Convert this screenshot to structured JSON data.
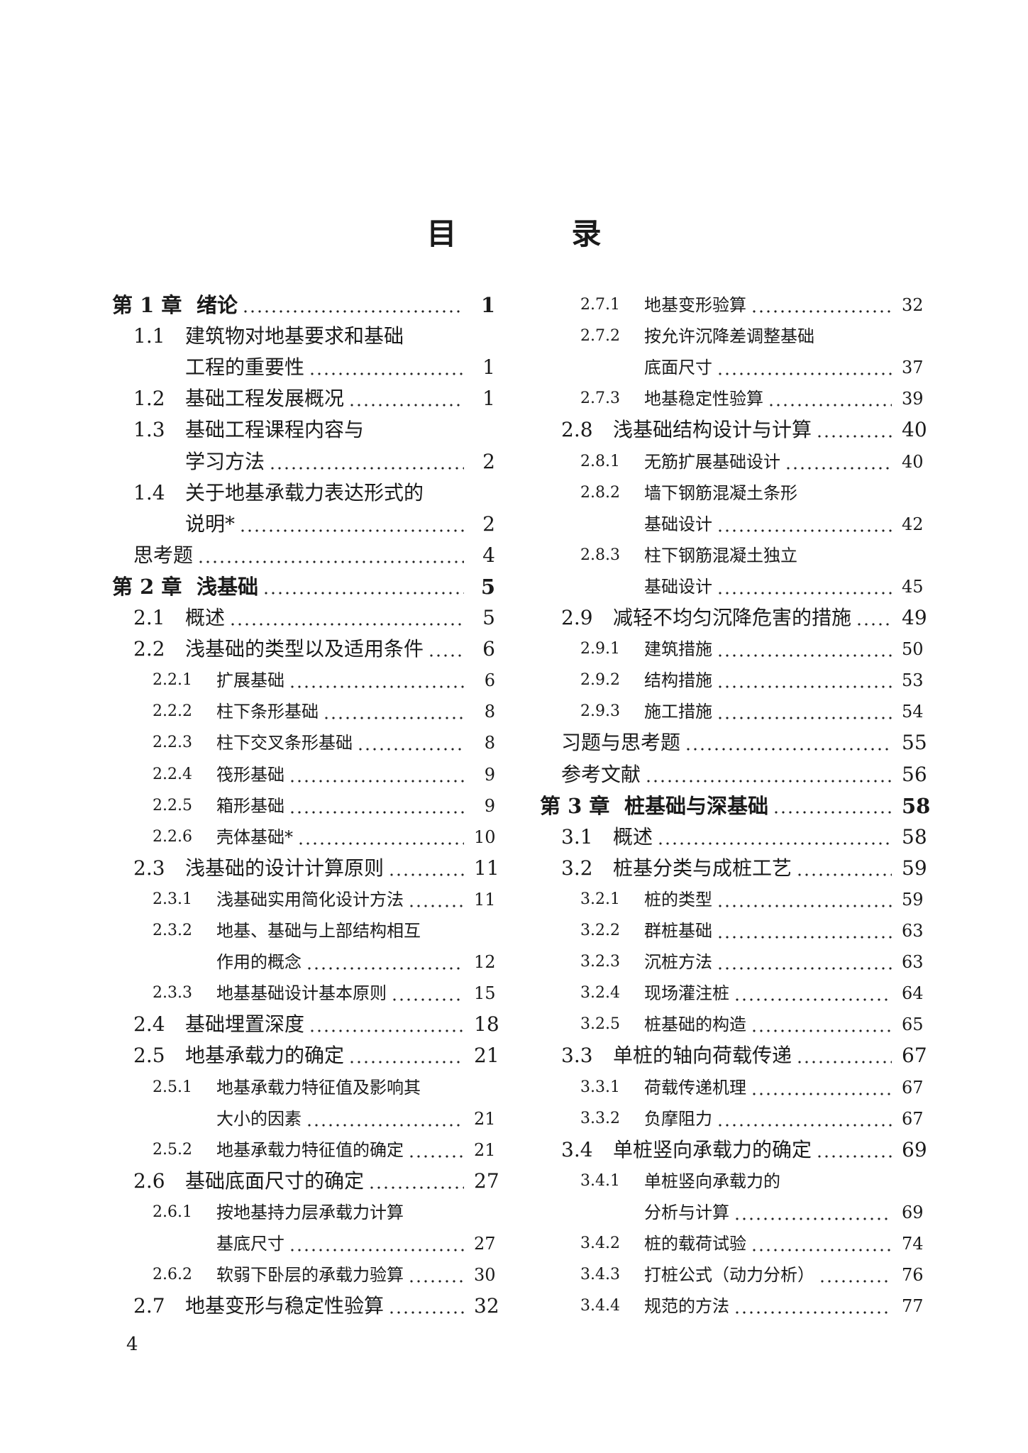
{
  "title": "目　录",
  "page_number": "4",
  "columns": [
    [
      {
        "level": 0,
        "num": "第 1 章",
        "text": "绪论",
        "page": "1"
      },
      {
        "level": 1,
        "num": "1.1",
        "text": "建筑物对地基要求和基础",
        "page": ""
      },
      {
        "level": 1,
        "num": "",
        "text": "工程的重要性",
        "page": "1"
      },
      {
        "level": 1,
        "num": "1.2",
        "text": "基础工程发展概况",
        "page": "1"
      },
      {
        "level": 1,
        "num": "1.3",
        "text": "基础工程课程内容与",
        "page": ""
      },
      {
        "level": 1,
        "num": "",
        "text": "学习方法",
        "page": "2"
      },
      {
        "level": 1,
        "num": "1.4",
        "text": "关于地基承载力表达形式的",
        "page": ""
      },
      {
        "level": 1,
        "num": "",
        "text": "说明*",
        "page": "2"
      },
      {
        "level": 1,
        "num": "",
        "text": "思考题",
        "page": "4",
        "flush": true
      },
      {
        "level": 0,
        "num": "第 2 章",
        "text": "浅基础",
        "page": "5"
      },
      {
        "level": 1,
        "num": "2.1",
        "text": "概述",
        "page": "5"
      },
      {
        "level": 1,
        "num": "2.2",
        "text": "浅基础的类型以及适用条件",
        "page": "6"
      },
      {
        "level": 2,
        "num": "2.2.1",
        "text": "扩展基础",
        "page": "6"
      },
      {
        "level": 2,
        "num": "2.2.2",
        "text": "柱下条形基础",
        "page": "8"
      },
      {
        "level": 2,
        "num": "2.2.3",
        "text": "柱下交叉条形基础",
        "page": "8"
      },
      {
        "level": 2,
        "num": "2.2.4",
        "text": "筏形基础",
        "page": "9"
      },
      {
        "level": 2,
        "num": "2.2.5",
        "text": "箱形基础",
        "page": "9"
      },
      {
        "level": 2,
        "num": "2.2.6",
        "text": "壳体基础*",
        "page": "10"
      },
      {
        "level": 1,
        "num": "2.3",
        "text": "浅基础的设计计算原则",
        "page": "11"
      },
      {
        "level": 2,
        "num": "2.3.1",
        "text": "浅基础实用简化设计方法",
        "page": "11"
      },
      {
        "level": 2,
        "num": "2.3.2",
        "text": "地基、基础与上部结构相互",
        "page": ""
      },
      {
        "level": 2,
        "num": "",
        "text": "作用的概念",
        "page": "12"
      },
      {
        "level": 2,
        "num": "2.3.3",
        "text": "地基基础设计基本原则",
        "page": "15"
      },
      {
        "level": 1,
        "num": "2.4",
        "text": "基础埋置深度",
        "page": "18"
      },
      {
        "level": 1,
        "num": "2.5",
        "text": "地基承载力的确定",
        "page": "21"
      },
      {
        "level": 2,
        "num": "2.5.1",
        "text": "地基承载力特征值及影响其",
        "page": ""
      },
      {
        "level": 2,
        "num": "",
        "text": "大小的因素",
        "page": "21"
      },
      {
        "level": 2,
        "num": "2.5.2",
        "text": "地基承载力特征值的确定",
        "page": "21"
      },
      {
        "level": 1,
        "num": "2.6",
        "text": "基础底面尺寸的确定",
        "page": "27"
      },
      {
        "level": 2,
        "num": "2.6.1",
        "text": "按地基持力层承载力计算",
        "page": ""
      },
      {
        "level": 2,
        "num": "",
        "text": "基底尺寸",
        "page": "27"
      },
      {
        "level": 2,
        "num": "2.6.2",
        "text": "软弱下卧层的承载力验算",
        "page": "30"
      },
      {
        "level": 1,
        "num": "2.7",
        "text": "地基变形与稳定性验算",
        "page": "32"
      }
    ],
    [
      {
        "level": 2,
        "num": "2.7.1",
        "text": "地基变形验算",
        "page": "32"
      },
      {
        "level": 2,
        "num": "2.7.2",
        "text": "按允许沉降差调整基础",
        "page": ""
      },
      {
        "level": 2,
        "num": "",
        "text": "底面尺寸",
        "page": "37"
      },
      {
        "level": 2,
        "num": "2.7.3",
        "text": "地基稳定性验算",
        "page": "39"
      },
      {
        "level": 1,
        "num": "2.8",
        "text": "浅基础结构设计与计算",
        "page": "40"
      },
      {
        "level": 2,
        "num": "2.8.1",
        "text": "无筋扩展基础设计",
        "page": "40"
      },
      {
        "level": 2,
        "num": "2.8.2",
        "text": "墙下钢筋混凝土条形",
        "page": ""
      },
      {
        "level": 2,
        "num": "",
        "text": "基础设计",
        "page": "42"
      },
      {
        "level": 2,
        "num": "2.8.3",
        "text": "柱下钢筋混凝土独立",
        "page": ""
      },
      {
        "level": 2,
        "num": "",
        "text": "基础设计",
        "page": "45"
      },
      {
        "level": 1,
        "num": "2.9",
        "text": "减轻不均匀沉降危害的措施",
        "page": "49"
      },
      {
        "level": 2,
        "num": "2.9.1",
        "text": "建筑措施",
        "page": "50"
      },
      {
        "level": 2,
        "num": "2.9.2",
        "text": "结构措施",
        "page": "53"
      },
      {
        "level": 2,
        "num": "2.9.3",
        "text": "施工措施",
        "page": "54"
      },
      {
        "level": 1,
        "num": "",
        "text": "习题与思考题",
        "page": "55",
        "flush": true
      },
      {
        "level": 1,
        "num": "",
        "text": "参考文献",
        "page": "56",
        "flush": true
      },
      {
        "level": 0,
        "num": "第 3 章",
        "text": "桩基础与深基础",
        "page": "58"
      },
      {
        "level": 1,
        "num": "3.1",
        "text": "概述",
        "page": "58"
      },
      {
        "level": 1,
        "num": "3.2",
        "text": "桩基分类与成桩工艺",
        "page": "59"
      },
      {
        "level": 2,
        "num": "3.2.1",
        "text": "桩的类型",
        "page": "59"
      },
      {
        "level": 2,
        "num": "3.2.2",
        "text": "群桩基础",
        "page": "63"
      },
      {
        "level": 2,
        "num": "3.2.3",
        "text": "沉桩方法",
        "page": "63"
      },
      {
        "level": 2,
        "num": "3.2.4",
        "text": "现场灌注桩",
        "page": "64"
      },
      {
        "level": 2,
        "num": "3.2.5",
        "text": "桩基础的构造",
        "page": "65"
      },
      {
        "level": 1,
        "num": "3.3",
        "text": "单桩的轴向荷载传递",
        "page": "67"
      },
      {
        "level": 2,
        "num": "3.3.1",
        "text": "荷载传递机理",
        "page": "67"
      },
      {
        "level": 2,
        "num": "3.3.2",
        "text": "负摩阻力",
        "page": "67"
      },
      {
        "level": 1,
        "num": "3.4",
        "text": "单桩竖向承载力的确定",
        "page": "69"
      },
      {
        "level": 2,
        "num": "3.4.1",
        "text": "单桩竖向承载力的",
        "page": ""
      },
      {
        "level": 2,
        "num": "",
        "text": "分析与计算",
        "page": "69"
      },
      {
        "level": 2,
        "num": "3.4.2",
        "text": "桩的载荷试验",
        "page": "74"
      },
      {
        "level": 2,
        "num": "3.4.3",
        "text": "打桩公式（动力分析）",
        "page": "76"
      },
      {
        "level": 2,
        "num": "3.4.4",
        "text": "规范的方法",
        "page": "77"
      }
    ]
  ]
}
